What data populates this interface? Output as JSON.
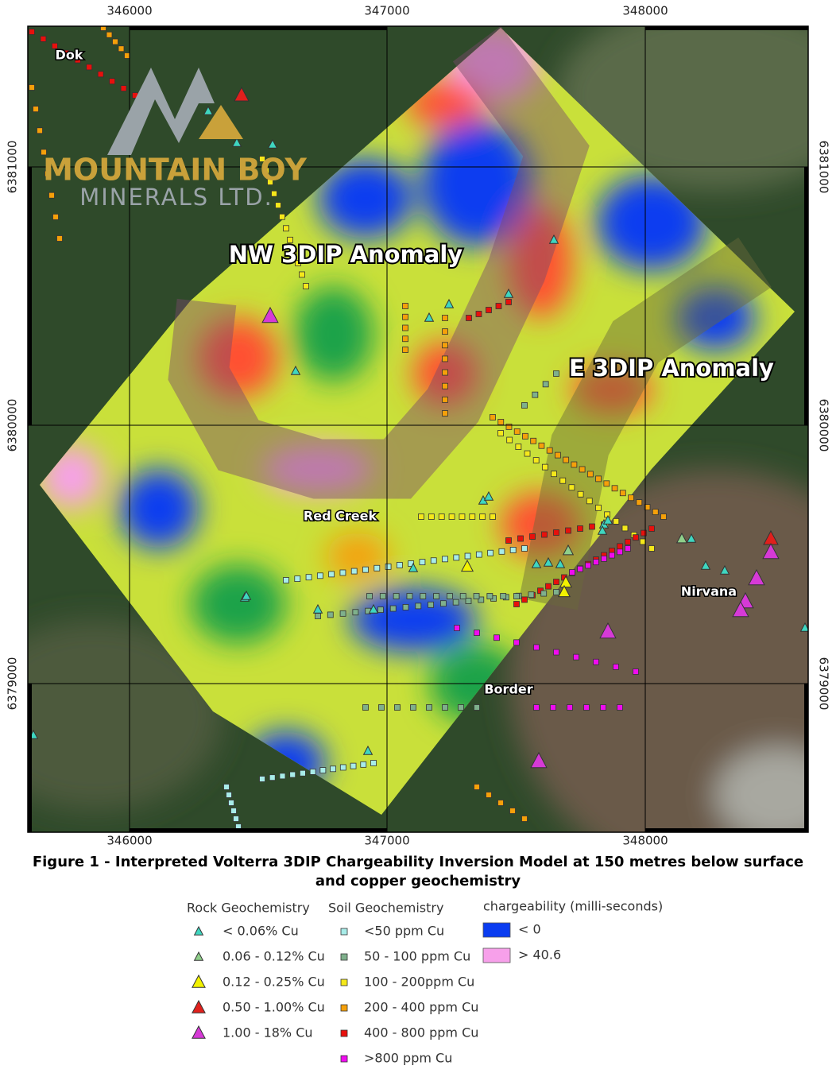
{
  "map": {
    "x_axis_labels": [
      "346000",
      "347000",
      "348000"
    ],
    "y_axis_labels": [
      "6381000",
      "6380000",
      "6379000"
    ],
    "places": [
      "Dok",
      "Red Creek",
      "Nirvana",
      "Border"
    ],
    "anomalies": [
      "NW 3DIP Anomaly",
      "E 3DIP Anomaly"
    ],
    "logo": {
      "name": "MOUNTAIN BOY",
      "subtitle": "MINERALS LTD."
    }
  },
  "caption": [
    "Figure 1 - Interpreted Volterra 3DIP Chargeability Inversion Model at 150 metres below surface",
    "and copper geochemistry"
  ],
  "legend": {
    "rock": {
      "title": "Rock Geochemistry",
      "items": [
        {
          "label": "< 0.06% Cu",
          "color": "#3fd6c0"
        },
        {
          "label": "0.06 - 0.12% Cu",
          "color": "#8fcf8a"
        },
        {
          "label": "0.12 - 0.25% Cu",
          "color": "#f2f200"
        },
        {
          "label": "0.50 - 1.00% Cu",
          "color": "#e0201c"
        },
        {
          "label": "1.00 - 18% Cu",
          "color": "#d63ad6"
        }
      ]
    },
    "soil": {
      "title": "Soil Geochemistry",
      "items": [
        {
          "label": "<50 ppm Cu",
          "color": "#a8ece8"
        },
        {
          "label": "50 - 100 ppm Cu",
          "color": "#7fb08c"
        },
        {
          "label": "100 - 200ppm Cu",
          "color": "#f5e81a"
        },
        {
          "label": "200 - 400 ppm Cu",
          "color": "#f5a00a"
        },
        {
          "label": "400 - 800 ppm Cu",
          "color": "#e8100c"
        },
        {
          "label": ">800 ppm Cu",
          "color": "#f00cf0"
        }
      ]
    },
    "chargeability": {
      "title": "chargeability (milli-seconds)",
      "items": [
        {
          "label": "< 0",
          "color": "#0a3cf0"
        },
        {
          "label": "> 40.6",
          "color": "#f7a0ea"
        }
      ]
    }
  }
}
